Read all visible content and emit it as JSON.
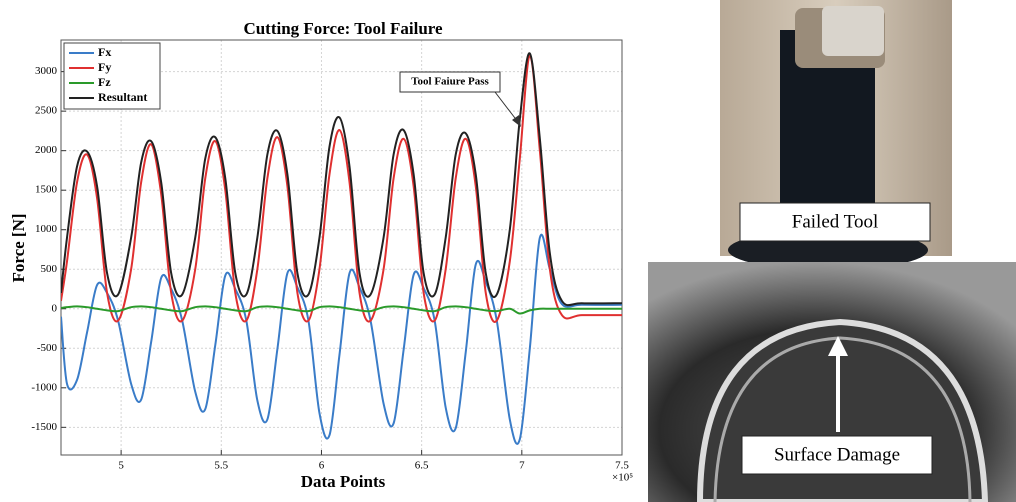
{
  "chart_data": {
    "type": "line",
    "title": "Cutting Force: Tool Failure",
    "xlabel": "Data Points",
    "ylabel": "Force [N]",
    "x_exponent_label": "×10⁵",
    "annotation": "Tool Faiure Pass",
    "x": [
      4.7,
      4.73,
      4.78,
      4.83,
      4.88,
      4.93,
      4.985,
      5.05,
      5.1,
      5.15,
      5.2,
      5.25,
      5.305,
      5.37,
      5.42,
      5.47,
      5.52,
      5.57,
      5.625,
      5.68,
      5.73,
      5.78,
      5.83,
      5.88,
      5.935,
      5.99,
      6.04,
      6.09,
      6.14,
      6.19,
      6.245,
      6.31,
      6.36,
      6.41,
      6.46,
      6.51,
      6.565,
      6.62,
      6.67,
      6.72,
      6.77,
      6.82,
      6.875,
      6.94,
      6.99,
      7.04,
      7.09,
      7.14,
      7.2,
      7.3,
      7.5
    ],
    "series": [
      {
        "name": "Fx",
        "color": "#3a7cc8",
        "values": [
          -100,
          -950,
          -900,
          -300,
          300,
          200,
          -150,
          -950,
          -1150,
          -420,
          390,
          250,
          -150,
          -1050,
          -1270,
          -460,
          420,
          250,
          -150,
          -1160,
          -1400,
          -510,
          450,
          270,
          -150,
          -1320,
          -1600,
          -580,
          450,
          270,
          -150,
          -1200,
          -1450,
          -520,
          430,
          260,
          -150,
          -1250,
          -1510,
          -550,
          560,
          340,
          -150,
          -1400,
          -1650,
          -500,
          900,
          500,
          60,
          50,
          50
        ]
      },
      {
        "name": "Fy",
        "color": "#e03030",
        "values": [
          100,
          600,
          1600,
          1950,
          1400,
          200,
          -150,
          500,
          1600,
          2080,
          1450,
          200,
          -150,
          500,
          1650,
          2120,
          1500,
          200,
          -150,
          500,
          1650,
          2170,
          1550,
          200,
          -150,
          500,
          1700,
          2260,
          1600,
          200,
          -150,
          500,
          1650,
          2150,
          1550,
          200,
          -150,
          500,
          1650,
          2150,
          1550,
          200,
          -150,
          600,
          1900,
          3200,
          2000,
          500,
          -80,
          -80,
          -80
        ]
      },
      {
        "name": "Fz",
        "color": "#2a9a2a",
        "values": [
          10,
          20,
          30,
          20,
          0,
          -20,
          -30,
          20,
          30,
          20,
          0,
          -20,
          -30,
          20,
          30,
          20,
          0,
          -20,
          -30,
          20,
          30,
          20,
          0,
          -20,
          -30,
          20,
          30,
          20,
          0,
          -20,
          -30,
          20,
          30,
          20,
          0,
          -20,
          -30,
          20,
          30,
          20,
          0,
          -20,
          -30,
          0,
          -60,
          -20,
          0,
          0,
          0,
          0,
          0
        ]
      },
      {
        "name": "Resultant",
        "color": "#222222",
        "values": [
          200,
          900,
          1800,
          1990,
          1550,
          450,
          180,
          900,
          1850,
          2120,
          1600,
          450,
          180,
          900,
          1900,
          2170,
          1650,
          450,
          180,
          900,
          1950,
          2250,
          1700,
          450,
          180,
          900,
          2050,
          2420,
          1800,
          450,
          180,
          900,
          1950,
          2260,
          1700,
          450,
          180,
          900,
          1950,
          2220,
          1700,
          450,
          180,
          1000,
          2400,
          3230,
          2150,
          700,
          100,
          70,
          70
        ]
      }
    ],
    "xlim": [
      4.7,
      7.5
    ],
    "ylim": [
      -1850,
      3400
    ],
    "xticks": [
      5,
      5.5,
      6,
      6.5,
      7,
      7.5
    ],
    "yticks": [
      -1500,
      -1000,
      -500,
      0,
      500,
      1000,
      1500,
      2000,
      2500,
      3000
    ],
    "grid": true,
    "legend": "upper left"
  },
  "photos": {
    "failed_tool": "Failed Tool",
    "surface_damage": "Surface Damage"
  }
}
